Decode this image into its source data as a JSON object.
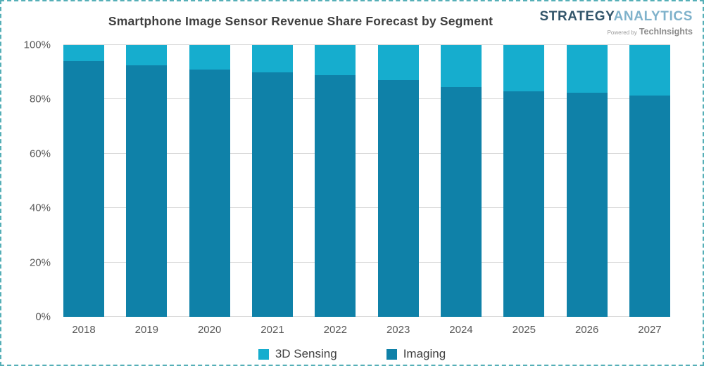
{
  "title": "Smartphone Image Sensor Revenue Share Forecast by Segment",
  "logo": {
    "brand_primary": "STRATEGY",
    "brand_secondary": "ANALYTICS",
    "powered_by": "Powered by",
    "powered_brand": "TechInsights"
  },
  "colors": {
    "sensing": "#16adce",
    "imaging": "#0f81a8",
    "border_dashed": "#55afb7",
    "gridline": "#dbdbdb",
    "axis_text": "#595959",
    "title_text": "#3f3f3f",
    "brand_primary_color": "#32556a",
    "brand_secondary_color": "#7fb2cb"
  },
  "chart_data": {
    "type": "bar",
    "stacked": true,
    "title": "Smartphone Image Sensor Revenue Share Forecast by Segment",
    "categories": [
      "2018",
      "2019",
      "2020",
      "2021",
      "2022",
      "2023",
      "2024",
      "2025",
      "2026",
      "2027"
    ],
    "series": [
      {
        "name": "3D Sensing",
        "color": "#16adce",
        "values": [
          6,
          7.5,
          9,
          10,
          11,
          13,
          15.5,
          17,
          17.5,
          18.5
        ]
      },
      {
        "name": "Imaging",
        "color": "#0f81a8",
        "values": [
          94,
          92.5,
          91,
          90,
          89,
          87,
          84.5,
          83,
          82.5,
          81.5
        ]
      }
    ],
    "xlabel": "",
    "ylabel": "",
    "ylim": [
      0,
      100
    ],
    "yticks": [
      0,
      20,
      40,
      60,
      80,
      100
    ],
    "ytick_labels": [
      "0%",
      "20%",
      "40%",
      "60%",
      "80%",
      "100%"
    ],
    "grid": true,
    "legend": [
      "3D Sensing",
      "Imaging"
    ],
    "legend_position": "bottom"
  }
}
